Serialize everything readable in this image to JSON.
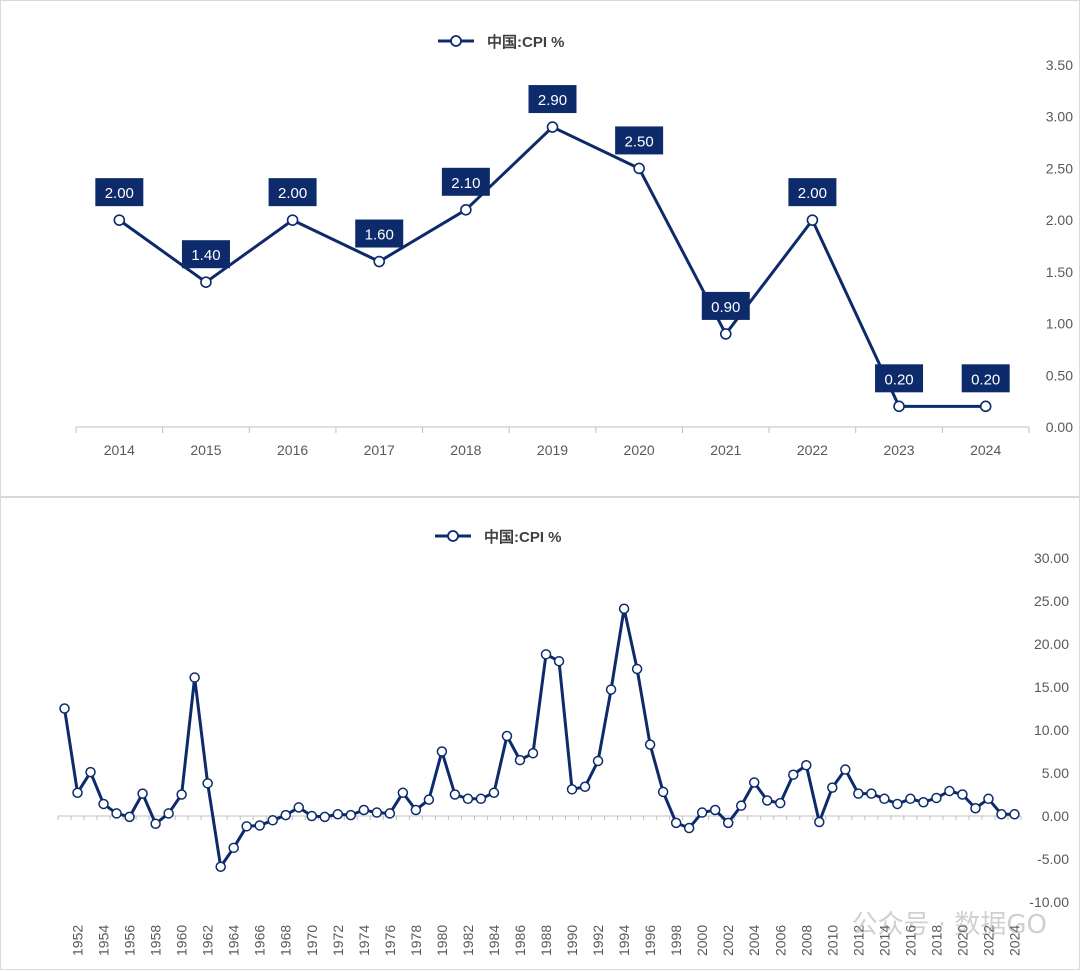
{
  "colors": {
    "line": "#0d2a6b",
    "label_bg": "#0d2a6b",
    "axis": "#bfbfbf",
    "tick": "#595959"
  },
  "chart_data": [
    {
      "type": "line",
      "title": "",
      "legend": "中国:CPI %",
      "legend_position": "top",
      "x": [
        "2014",
        "2015",
        "2016",
        "2017",
        "2018",
        "2019",
        "2020",
        "2021",
        "2022",
        "2023",
        "2024"
      ],
      "series": [
        {
          "name": "中国:CPI %",
          "values": [
            2.0,
            1.4,
            2.0,
            1.6,
            2.1,
            2.9,
            2.5,
            0.9,
            2.0,
            0.2,
            0.2
          ]
        }
      ],
      "data_labels": [
        "2.00",
        "1.40",
        "2.00",
        "1.60",
        "2.10",
        "2.90",
        "2.50",
        "0.90",
        "2.00",
        "0.20",
        "0.20"
      ],
      "ylim": [
        0,
        3.5
      ],
      "yticks": [
        "0.00",
        "0.50",
        "1.00",
        "1.50",
        "2.00",
        "2.50",
        "3.00",
        "3.50"
      ],
      "y_axis_side": "right",
      "grid": false
    },
    {
      "type": "line",
      "title": "",
      "legend": "中国:CPI %",
      "legend_position": "top",
      "x": [
        "1951",
        "1952",
        "1953",
        "1954",
        "1955",
        "1956",
        "1957",
        "1958",
        "1959",
        "1960",
        "1961",
        "1962",
        "1963",
        "1964",
        "1965",
        "1966",
        "1967",
        "1968",
        "1969",
        "1970",
        "1971",
        "1972",
        "1973",
        "1974",
        "1975",
        "1976",
        "1977",
        "1978",
        "1979",
        "1980",
        "1981",
        "1982",
        "1983",
        "1984",
        "1985",
        "1986",
        "1987",
        "1988",
        "1989",
        "1990",
        "1991",
        "1992",
        "1993",
        "1994",
        "1995",
        "1996",
        "1997",
        "1998",
        "1999",
        "2000",
        "2001",
        "2002",
        "2003",
        "2004",
        "2005",
        "2006",
        "2007",
        "2008",
        "2009",
        "2010",
        "2011",
        "2012",
        "2013",
        "2014",
        "2015",
        "2016",
        "2017",
        "2018",
        "2019",
        "2020",
        "2021",
        "2022",
        "2023",
        "2024"
      ],
      "series": [
        {
          "name": "中国:CPI %",
          "values": [
            12.5,
            2.7,
            5.1,
            1.4,
            0.3,
            -0.1,
            2.6,
            -0.9,
            0.3,
            2.5,
            16.1,
            3.8,
            -5.9,
            -3.7,
            -1.2,
            -1.1,
            -0.5,
            0.1,
            1.0,
            0.0,
            -0.1,
            0.2,
            0.1,
            0.7,
            0.4,
            0.3,
            2.7,
            0.7,
            1.9,
            7.5,
            2.5,
            2.0,
            2.0,
            2.7,
            9.3,
            6.5,
            7.3,
            18.8,
            18.0,
            3.1,
            3.4,
            6.4,
            14.7,
            24.1,
            17.1,
            8.3,
            2.8,
            -0.8,
            -1.4,
            0.4,
            0.7,
            -0.8,
            1.2,
            3.9,
            1.8,
            1.5,
            4.8,
            5.9,
            -0.7,
            3.3,
            5.4,
            2.6,
            2.6,
            2.0,
            1.4,
            2.0,
            1.6,
            2.1,
            2.9,
            2.5,
            0.9,
            2.0,
            0.2,
            0.2
          ]
        }
      ],
      "xtick_labels": [
        "1952",
        "1954",
        "1956",
        "1958",
        "1960",
        "1962",
        "1964",
        "1966",
        "1968",
        "1970",
        "1972",
        "1974",
        "1976",
        "1978",
        "1980",
        "1982",
        "1984",
        "1986",
        "1988",
        "1990",
        "1992",
        "1994",
        "1996",
        "1998",
        "2000",
        "2002",
        "2004",
        "2006",
        "2008",
        "2010",
        "2012",
        "2014",
        "2016",
        "2018",
        "2020",
        "2022",
        "2024"
      ],
      "ylim": [
        -10,
        30
      ],
      "yticks": [
        "-10.00",
        "-5.00",
        "0.00",
        "5.00",
        "10.00",
        "15.00",
        "20.00",
        "25.00",
        "30.00"
      ],
      "y_axis_side": "right",
      "grid": false
    }
  ],
  "watermark": "公众号 · 数据GO"
}
